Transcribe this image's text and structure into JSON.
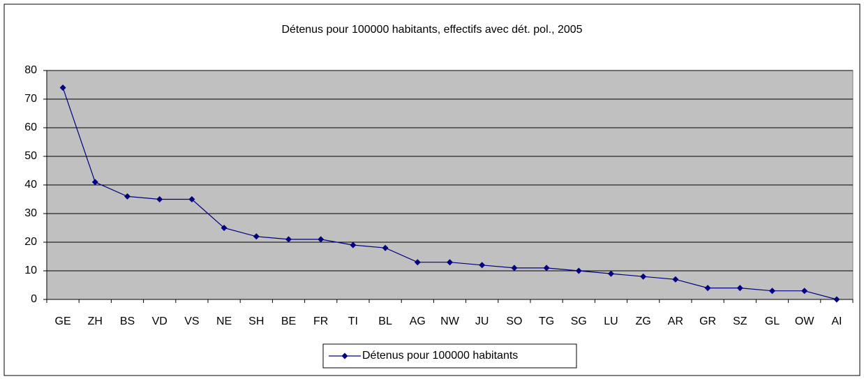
{
  "chart_data": {
    "type": "line",
    "title": "Détenus pour 100000 habitants, effectifs avec dét. pol., 2005",
    "categories": [
      "GE",
      "ZH",
      "BS",
      "VD",
      "VS",
      "NE",
      "SH",
      "BE",
      "FR",
      "TI",
      "BL",
      "AG",
      "NW",
      "JU",
      "SO",
      "TG",
      "SG",
      "LU",
      "ZG",
      "AR",
      "GR",
      "SZ",
      "GL",
      "OW",
      "AI"
    ],
    "series": [
      {
        "name": "Détenus pour 100000 habitants",
        "color": "#000080",
        "values": [
          74,
          41,
          36,
          35,
          35,
          25,
          22,
          21,
          21,
          19,
          18,
          13,
          13,
          12,
          11,
          11,
          10,
          9,
          8,
          7,
          4,
          4,
          3,
          3,
          0
        ]
      }
    ],
    "ylim": [
      0,
      80
    ],
    "yticks": [
      0,
      10,
      20,
      30,
      40,
      50,
      60,
      70,
      80
    ],
    "grid": true,
    "legend": "bottom",
    "plot_background": "#c0c0c0"
  }
}
